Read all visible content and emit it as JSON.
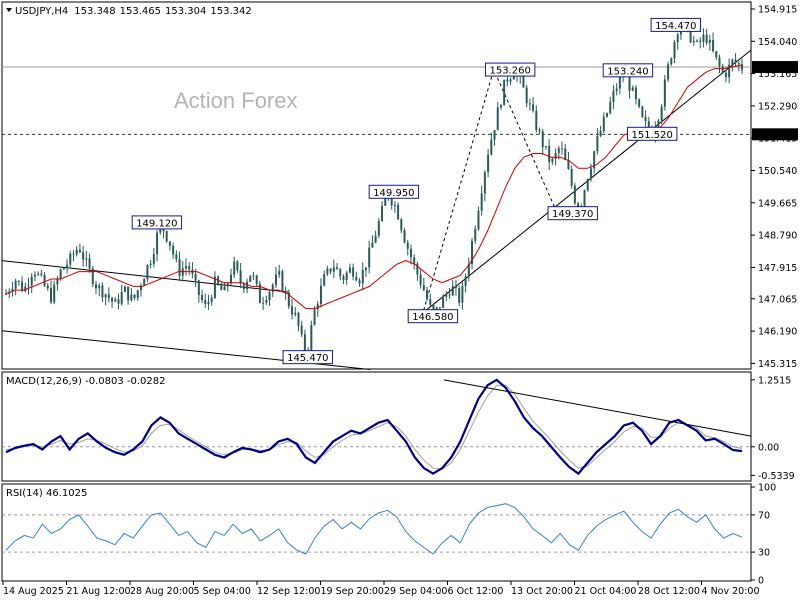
{
  "chart_data": {
    "type": "candlestick",
    "symbol_header": "USDJPY,H4",
    "ohlc": {
      "open": "153.348",
      "high": "153.465",
      "low": "153.304",
      "close": "153.342"
    },
    "watermark": "Action Forex",
    "colors": {
      "candles": "#2a5a5a",
      "ma": "#cc0000",
      "macd": "#000080",
      "signal": "#a0a0a0",
      "rsi": "#3a7fd5",
      "badge": "#000000"
    },
    "price_axis": {
      "ticks": [
        "154.915",
        "154.040",
        "153.165",
        "152.290",
        "151.415",
        "150.540",
        "149.665",
        "148.790",
        "147.915",
        "147.065",
        "146.190",
        "145.315"
      ],
      "ylim": [
        145.19,
        155.05
      ]
    },
    "current_price": "153.342",
    "level_line": "151.520",
    "x_labels": [
      "14 Aug 2025",
      "21 Aug 12:00",
      "28 Aug 20:00",
      "5 Sep 04:00",
      "12 Sep 12:00",
      "19 Sep 20:00",
      "29 Sep 04:00",
      "6 Oct 12:00",
      "13 Oct 20:00",
      "21 Oct 04:00",
      "28 Oct 12:00",
      "4 Nov 20:00"
    ],
    "price_path": [
      147.2,
      147.6,
      147.3,
      147.9,
      147.5,
      147.1,
      147.8,
      148.1,
      148.5,
      147.9,
      147.4,
      147.2,
      146.9,
      147.3,
      147.0,
      147.6,
      148.2,
      149.12,
      148.6,
      147.8,
      148.0,
      147.3,
      146.8,
      147.5,
      147.2,
      148.0,
      147.4,
      147.8,
      147.0,
      147.3,
      147.7,
      147.0,
      146.5,
      145.47,
      146.8,
      147.6,
      148.0,
      147.6,
      147.9,
      147.6,
      148.3,
      149.1,
      149.95,
      149.5,
      148.6,
      147.9,
      147.3,
      146.58,
      147.0,
      147.4,
      147.0,
      148.2,
      149.6,
      151.0,
      152.0,
      153.0,
      153.26,
      152.7,
      152.0,
      151.3,
      150.7,
      151.2,
      150.4,
      149.37,
      150.4,
      151.3,
      152.0,
      152.7,
      153.24,
      152.6,
      151.9,
      151.52,
      152.2,
      153.5,
      154.47,
      154.3,
      153.9,
      154.2,
      153.6,
      153.1,
      153.5,
      153.34
    ],
    "ma_path": [
      147.2,
      147.3,
      147.3,
      147.4,
      147.5,
      147.6,
      147.6,
      147.7,
      147.8,
      147.8,
      147.8,
      147.7,
      147.6,
      147.5,
      147.4,
      147.4,
      147.5,
      147.6,
      147.7,
      147.8,
      147.8,
      147.8,
      147.7,
      147.6,
      147.5,
      147.5,
      147.5,
      147.4,
      147.4,
      147.3,
      147.3,
      147.2,
      147.0,
      146.8,
      146.8,
      146.9,
      147.0,
      147.1,
      147.2,
      147.3,
      147.4,
      147.6,
      147.8,
      148.0,
      148.1,
      148.0,
      147.8,
      147.6,
      147.5,
      147.6,
      147.7,
      148.0,
      148.4,
      148.9,
      149.5,
      150.1,
      150.6,
      150.9,
      151.0,
      151.0,
      150.9,
      150.9,
      150.8,
      150.6,
      150.6,
      150.7,
      150.9,
      151.2,
      151.5,
      151.6,
      151.6,
      151.6,
      151.7,
      152.0,
      152.4,
      152.8,
      153.0,
      153.2,
      153.3,
      153.3,
      153.35,
      153.4
    ],
    "annotations": [
      {
        "label": "149.120",
        "price": 149.12,
        "pos": 0.205
      },
      {
        "label": "145.470",
        "price": 145.47,
        "pos": 0.41
      },
      {
        "label": "149.950",
        "price": 149.95,
        "pos": 0.527
      },
      {
        "label": "146.580",
        "price": 146.58,
        "pos": 0.58
      },
      {
        "label": "153.260",
        "price": 153.26,
        "pos": 0.685
      },
      {
        "label": "149.370",
        "price": 149.37,
        "pos": 0.77
      },
      {
        "label": "153.240",
        "price": 153.24,
        "pos": 0.845
      },
      {
        "label": "151.520",
        "price": 151.52,
        "pos": 0.878
      },
      {
        "label": "154.470",
        "price": 154.47,
        "pos": 0.91
      }
    ],
    "macd": {
      "title": "MACD(12,26,9) -0.0803 -0.0282",
      "ticks": [
        "1.2515",
        "0.00",
        "-0.5339"
      ],
      "ylim": [
        -0.62,
        1.36
      ],
      "values": [
        -0.1,
        -0.02,
        0.02,
        0.05,
        -0.05,
        0.1,
        0.2,
        -0.05,
        0.15,
        0.25,
        0.1,
        -0.02,
        -0.1,
        -0.15,
        -0.05,
        0.1,
        0.4,
        0.55,
        0.45,
        0.25,
        0.15,
        0.05,
        -0.05,
        -0.15,
        -0.2,
        -0.1,
        -0.02,
        -0.05,
        -0.1,
        -0.05,
        0.1,
        0.15,
        0.05,
        -0.2,
        -0.3,
        -0.1,
        0.1,
        0.2,
        0.3,
        0.25,
        0.35,
        0.45,
        0.5,
        0.3,
        0.1,
        -0.2,
        -0.4,
        -0.5,
        -0.4,
        -0.2,
        0.1,
        0.5,
        0.9,
        1.15,
        1.25,
        1.1,
        0.85,
        0.55,
        0.35,
        0.2,
        0.0,
        -0.2,
        -0.38,
        -0.5,
        -0.3,
        -0.1,
        0.05,
        0.2,
        0.4,
        0.45,
        0.3,
        0.05,
        0.2,
        0.45,
        0.5,
        0.4,
        0.3,
        0.12,
        0.15,
        0.05,
        -0.06,
        -0.08
      ],
      "signal": [
        -0.05,
        -0.04,
        0.0,
        0.03,
        0.0,
        0.05,
        0.12,
        0.05,
        0.08,
        0.15,
        0.12,
        0.05,
        -0.03,
        -0.1,
        -0.08,
        0.02,
        0.25,
        0.4,
        0.42,
        0.32,
        0.2,
        0.1,
        0.0,
        -0.1,
        -0.15,
        -0.12,
        -0.05,
        -0.04,
        -0.07,
        -0.06,
        0.04,
        0.1,
        0.08,
        -0.08,
        -0.2,
        -0.15,
        0.0,
        0.12,
        0.22,
        0.24,
        0.3,
        0.38,
        0.45,
        0.38,
        0.2,
        -0.05,
        -0.25,
        -0.4,
        -0.42,
        -0.3,
        -0.05,
        0.3,
        0.65,
        0.95,
        1.15,
        1.15,
        0.98,
        0.72,
        0.48,
        0.3,
        0.12,
        -0.08,
        -0.25,
        -0.4,
        -0.36,
        -0.2,
        -0.05,
        0.1,
        0.28,
        0.38,
        0.35,
        0.18,
        0.18,
        0.35,
        0.45,
        0.42,
        0.35,
        0.2,
        0.17,
        0.1,
        0.0,
        -0.03
      ],
      "trend_from": [
        0.595,
        1.25
      ],
      "trend_to": [
        0.995,
        0.2
      ]
    },
    "rsi": {
      "title": "RSI(14) 46.1025",
      "ticks": [
        "100",
        "70",
        "30",
        "0"
      ],
      "ylim": [
        0,
        100
      ],
      "levels": [
        70,
        30
      ],
      "values": [
        32,
        42,
        48,
        45,
        60,
        50,
        55,
        65,
        70,
        58,
        45,
        42,
        38,
        50,
        45,
        58,
        70,
        72,
        60,
        48,
        52,
        40,
        35,
        52,
        48,
        60,
        50,
        55,
        42,
        48,
        55,
        40,
        32,
        28,
        45,
        58,
        65,
        55,
        62,
        55,
        66,
        72,
        75,
        68,
        52,
        42,
        35,
        28,
        40,
        48,
        40,
        60,
        72,
        78,
        80,
        82,
        78,
        68,
        55,
        48,
        40,
        50,
        38,
        32,
        48,
        58,
        65,
        70,
        74,
        62,
        52,
        45,
        60,
        72,
        76,
        68,
        62,
        70,
        55,
        45,
        50,
        46
      ]
    }
  }
}
